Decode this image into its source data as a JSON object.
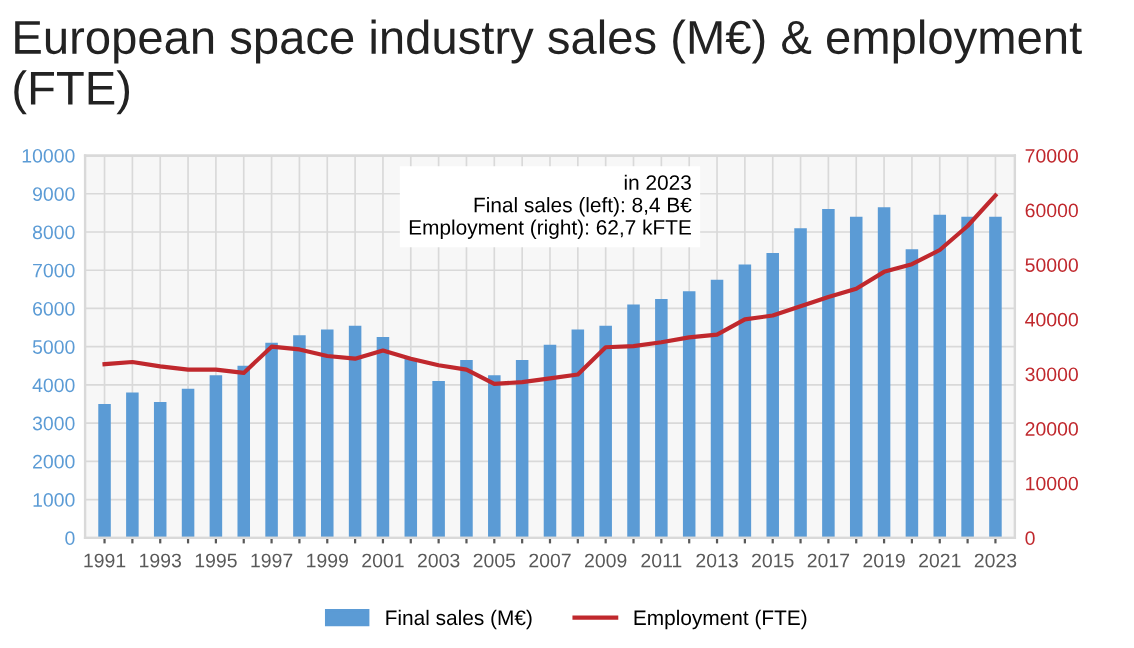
{
  "chart_data": {
    "type": "bar",
    "title": "European space industry sales (M€) & employment (FTE)",
    "categories": [
      "1991",
      null,
      "1993",
      null,
      "1995",
      null,
      "1997",
      null,
      "1999",
      null,
      "2001",
      null,
      "2003",
      null,
      "2005",
      null,
      "2007",
      null,
      "2009",
      null,
      "2011",
      null,
      "2013",
      null,
      "2015",
      null,
      "2017",
      null,
      "2019",
      null,
      "2021",
      null,
      "2023"
    ],
    "series": [
      {
        "name": "Final sales (M€)",
        "color": "#5b9bd5",
        "values": [
          3500,
          3800,
          3550,
          3900,
          4250,
          4500,
          5100,
          5300,
          5450,
          5550,
          5250,
          4700,
          4100,
          4650,
          4250,
          4650,
          5050,
          5450,
          5550,
          6100,
          6250,
          6450,
          6750,
          7150,
          7450,
          8100,
          8600,
          8400,
          8650,
          7550,
          8450,
          8400,
          8400
        ]
      },
      {
        "name": "Employment (FTE)",
        "type": "line",
        "axis": "y2",
        "color": "#c0282d",
        "values": [
          31800,
          32200,
          31400,
          30800,
          30800,
          30200,
          35000,
          34500,
          33300,
          32800,
          34300,
          32800,
          31600,
          30800,
          28200,
          28500,
          29200,
          29900,
          34900,
          35100,
          35800,
          36700,
          37200,
          40000,
          40700,
          42400,
          44100,
          45600,
          48700,
          50100,
          52700,
          57100,
          62700
        ]
      }
    ],
    "ylim": [
      0,
      10000
    ],
    "yticks": [
      0,
      1000,
      2000,
      3000,
      4000,
      5000,
      6000,
      7000,
      8000,
      9000,
      10000
    ],
    "y2lim": [
      0,
      70000
    ],
    "y2ticks": [
      0,
      10000,
      20000,
      30000,
      40000,
      50000,
      60000,
      70000
    ],
    "annotations": [
      "in 2023\nFinal sales (left): 8,4 B€\nEmployment (right): 62,7 kFTE"
    ],
    "grid": true,
    "legend": "bottom"
  }
}
